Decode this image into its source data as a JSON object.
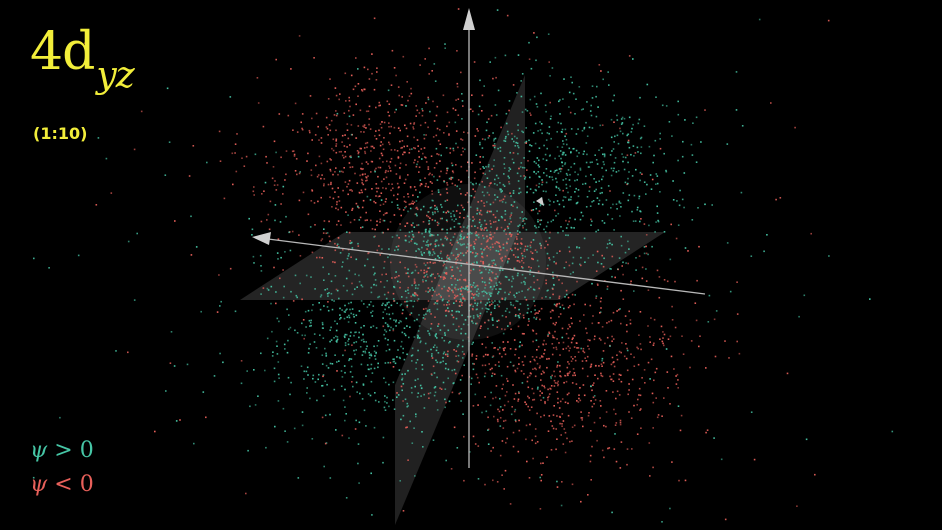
{
  "title": {
    "main": "4d",
    "subscript": "yz"
  },
  "scale_label": "(1:10)",
  "legend": {
    "positive": {
      "symbol": "ψ",
      "relation": "> 0",
      "color": "#46c6a6"
    },
    "negative": {
      "symbol": "ψ",
      "relation": "< 0",
      "color": "#e8605a"
    }
  },
  "colors": {
    "background": "#000000",
    "title": "#f2ee3a",
    "axis": "#b8b8b8",
    "plane": "#ffffff"
  }
}
